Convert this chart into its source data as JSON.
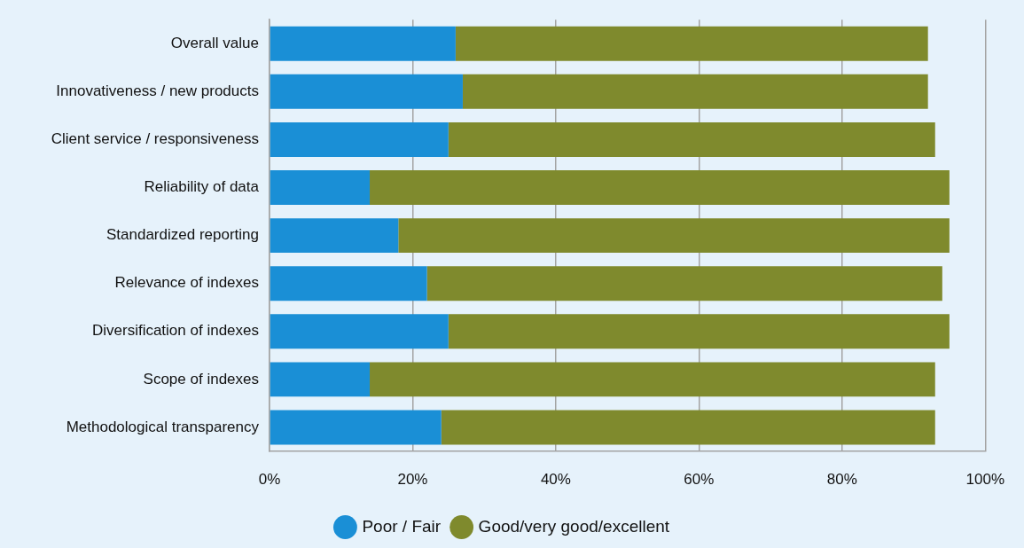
{
  "chart_data": {
    "type": "bar",
    "orientation": "horizontal",
    "stacked": true,
    "categories": [
      "Overall value",
      "Innovativeness / new products",
      "Client service / responsiveness",
      "Reliability of data",
      "Standardized reporting",
      "Relevance of indexes",
      "Diversification of indexes",
      "Scope of indexes",
      "Methodological transparency"
    ],
    "series": [
      {
        "name": "Poor / Fair",
        "color": "#1a8fd6",
        "values": [
          26,
          27,
          25,
          14,
          18,
          22,
          25,
          14,
          24
        ]
      },
      {
        "name": "Good/very good/excellent",
        "color": "#7f8a2d",
        "values": [
          66,
          65,
          68,
          81,
          77,
          72,
          70,
          79,
          69
        ]
      }
    ],
    "xlim": [
      0,
      100
    ],
    "xticks": [
      {
        "value": 0,
        "label": "0%"
      },
      {
        "value": 20,
        "label": "20%"
      },
      {
        "value": 40,
        "label": "40%"
      },
      {
        "value": 60,
        "label": "60%"
      },
      {
        "value": 80,
        "label": "80%"
      },
      {
        "value": 100,
        "label": "100%"
      }
    ],
    "grid": "x",
    "legend": "bottom"
  }
}
